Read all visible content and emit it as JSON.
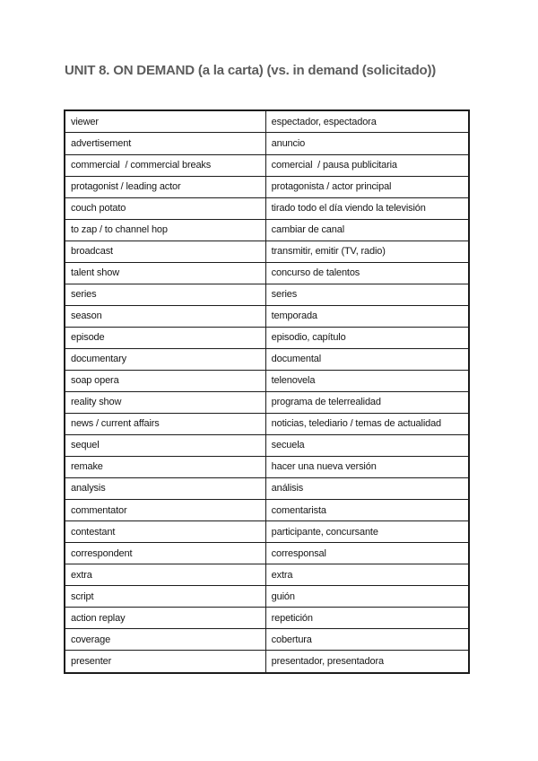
{
  "page_title": "UNIT 8. ON DEMAND (a la carta) (vs. in demand (solicitado))",
  "colors": {
    "page_background": "#ffffff",
    "title_text": "#5c5c5c",
    "cell_text": "#161616",
    "table_border": "#1c1c1c"
  },
  "vocab_table": {
    "columns": [
      "english_term",
      "spanish_translation"
    ],
    "rows": [
      [
        "viewer",
        "espectador, espectadora"
      ],
      [
        "advertisement",
        "anuncio"
      ],
      [
        "commercial  / commercial breaks",
        "comercial  / pausa publicitaria"
      ],
      [
        "protagonist / leading actor",
        "protagonista / actor principal"
      ],
      [
        "couch potato",
        "tirado todo el día viendo la televisión"
      ],
      [
        "to zap / to channel hop",
        "cambiar de canal"
      ],
      [
        "broadcast",
        "transmitir, emitir (TV, radio)"
      ],
      [
        "talent show",
        "concurso de talentos"
      ],
      [
        "series",
        "series"
      ],
      [
        "season",
        "temporada"
      ],
      [
        "episode",
        "episodio, capítulo"
      ],
      [
        "documentary",
        "documental"
      ],
      [
        "soap opera",
        "telenovela"
      ],
      [
        "reality show",
        "programa de telerrealidad"
      ],
      [
        "news / current affairs",
        "noticias, telediario / temas de actualidad"
      ],
      [
        "sequel",
        "secuela"
      ],
      [
        "remake",
        "hacer una nueva versión"
      ],
      [
        "analysis",
        "análisis"
      ],
      [
        "commentator",
        "comentarista"
      ],
      [
        "contestant",
        "participante, concursante"
      ],
      [
        "correspondent",
        "corresponsal"
      ],
      [
        "extra",
        "extra"
      ],
      [
        "script",
        "guión"
      ],
      [
        "action replay",
        "repetición"
      ],
      [
        "coverage",
        "cobertura"
      ],
      [
        "presenter",
        "presentador, presentadora"
      ]
    ]
  }
}
